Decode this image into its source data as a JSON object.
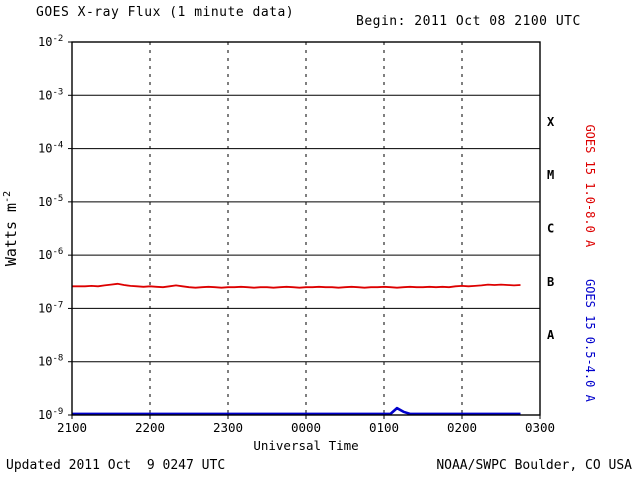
{
  "header": {
    "title": "GOES X-ray Flux (1 minute data)",
    "begin": "Begin: 2011 Oct 08 2100 UTC"
  },
  "footer": {
    "updated": "Updated 2011 Oct  9 0247 UTC",
    "source": "NOAA/SWPC Boulder, CO USA"
  },
  "colors": {
    "long_channel": "#dd0000",
    "short_channel": "#0000cc",
    "axis": "#000000",
    "background": "#ffffff"
  },
  "chart_data": {
    "type": "line",
    "title": "GOES X-ray Flux (1 minute data)",
    "subtitle": "Begin: 2011 Oct 08 2100 UTC",
    "xlabel": "Universal Time",
    "ylabel": "Watts m^-2",
    "ylabel_base": "Watts m",
    "ylabel_sup": "-2",
    "y_scale": "log",
    "y_top_exponent": -2,
    "y_bottom_exponent": -9,
    "ylim": [
      1e-09,
      0.01
    ],
    "y_tick_exponents": [
      -2,
      -3,
      -4,
      -5,
      -6,
      -7,
      -8,
      -9
    ],
    "x_ticks": [
      "2100",
      "2200",
      "2300",
      "0000",
      "0100",
      "0200",
      "0300"
    ],
    "x_range_minutes": [
      0,
      360
    ],
    "grid": {
      "horizontal": "solid",
      "vertical": "dashed"
    },
    "legend_position": "right-rotated",
    "flare_classes": [
      {
        "label": "X",
        "level_exponent": -3.5
      },
      {
        "label": "M",
        "level_exponent": -4.5
      },
      {
        "label": "C",
        "level_exponent": -5.5
      },
      {
        "label": "B",
        "level_exponent": -6.5
      },
      {
        "label": "A",
        "level_exponent": -7.5
      }
    ],
    "series": [
      {
        "name": "GOES 15 1.0-8.0 A",
        "color": "#dd0000",
        "points": [
          [
            0,
            2.6e-07
          ],
          [
            5,
            2.6e-07
          ],
          [
            10,
            2.6e-07
          ],
          [
            15,
            2.65e-07
          ],
          [
            20,
            2.6e-07
          ],
          [
            25,
            2.7e-07
          ],
          [
            30,
            2.8e-07
          ],
          [
            35,
            2.9e-07
          ],
          [
            40,
            2.75e-07
          ],
          [
            45,
            2.65e-07
          ],
          [
            50,
            2.6e-07
          ],
          [
            55,
            2.55e-07
          ],
          [
            60,
            2.6e-07
          ],
          [
            65,
            2.55e-07
          ],
          [
            70,
            2.5e-07
          ],
          [
            75,
            2.6e-07
          ],
          [
            80,
            2.7e-07
          ],
          [
            85,
            2.6e-07
          ],
          [
            90,
            2.5e-07
          ],
          [
            95,
            2.45e-07
          ],
          [
            100,
            2.5e-07
          ],
          [
            105,
            2.55e-07
          ],
          [
            110,
            2.5e-07
          ],
          [
            115,
            2.45e-07
          ],
          [
            120,
            2.5e-07
          ],
          [
            125,
            2.5e-07
          ],
          [
            130,
            2.55e-07
          ],
          [
            135,
            2.5e-07
          ],
          [
            140,
            2.45e-07
          ],
          [
            145,
            2.5e-07
          ],
          [
            150,
            2.5e-07
          ],
          [
            155,
            2.45e-07
          ],
          [
            160,
            2.5e-07
          ],
          [
            165,
            2.55e-07
          ],
          [
            170,
            2.5e-07
          ],
          [
            175,
            2.45e-07
          ],
          [
            180,
            2.5e-07
          ],
          [
            185,
            2.5e-07
          ],
          [
            190,
            2.55e-07
          ],
          [
            195,
            2.5e-07
          ],
          [
            200,
            2.5e-07
          ],
          [
            205,
            2.45e-07
          ],
          [
            210,
            2.5e-07
          ],
          [
            215,
            2.55e-07
          ],
          [
            220,
            2.5e-07
          ],
          [
            225,
            2.45e-07
          ],
          [
            230,
            2.5e-07
          ],
          [
            235,
            2.5e-07
          ],
          [
            240,
            2.55e-07
          ],
          [
            245,
            2.5e-07
          ],
          [
            250,
            2.45e-07
          ],
          [
            255,
            2.5e-07
          ],
          [
            260,
            2.55e-07
          ],
          [
            265,
            2.5e-07
          ],
          [
            270,
            2.5e-07
          ],
          [
            275,
            2.55e-07
          ],
          [
            280,
            2.5e-07
          ],
          [
            285,
            2.55e-07
          ],
          [
            290,
            2.5e-07
          ],
          [
            295,
            2.6e-07
          ],
          [
            300,
            2.65e-07
          ],
          [
            305,
            2.6e-07
          ],
          [
            310,
            2.65e-07
          ],
          [
            315,
            2.7e-07
          ],
          [
            320,
            2.8e-07
          ],
          [
            325,
            2.75e-07
          ],
          [
            330,
            2.8e-07
          ],
          [
            335,
            2.75e-07
          ],
          [
            340,
            2.7e-07
          ],
          [
            345,
            2.75e-07
          ]
        ]
      },
      {
        "name": "GOES 15 0.5-4.0 A",
        "color": "#0000cc",
        "points": [
          [
            0,
            1.05e-09
          ],
          [
            30,
            1.05e-09
          ],
          [
            60,
            1.05e-09
          ],
          [
            90,
            1.05e-09
          ],
          [
            120,
            1.05e-09
          ],
          [
            150,
            1.05e-09
          ],
          [
            180,
            1.05e-09
          ],
          [
            210,
            1.05e-09
          ],
          [
            240,
            1.05e-09
          ],
          [
            245,
            1.05e-09
          ],
          [
            250,
            1.35e-09
          ],
          [
            255,
            1.15e-09
          ],
          [
            260,
            1.05e-09
          ],
          [
            290,
            1.05e-09
          ],
          [
            320,
            1.05e-09
          ],
          [
            345,
            1.05e-09
          ]
        ]
      }
    ]
  }
}
